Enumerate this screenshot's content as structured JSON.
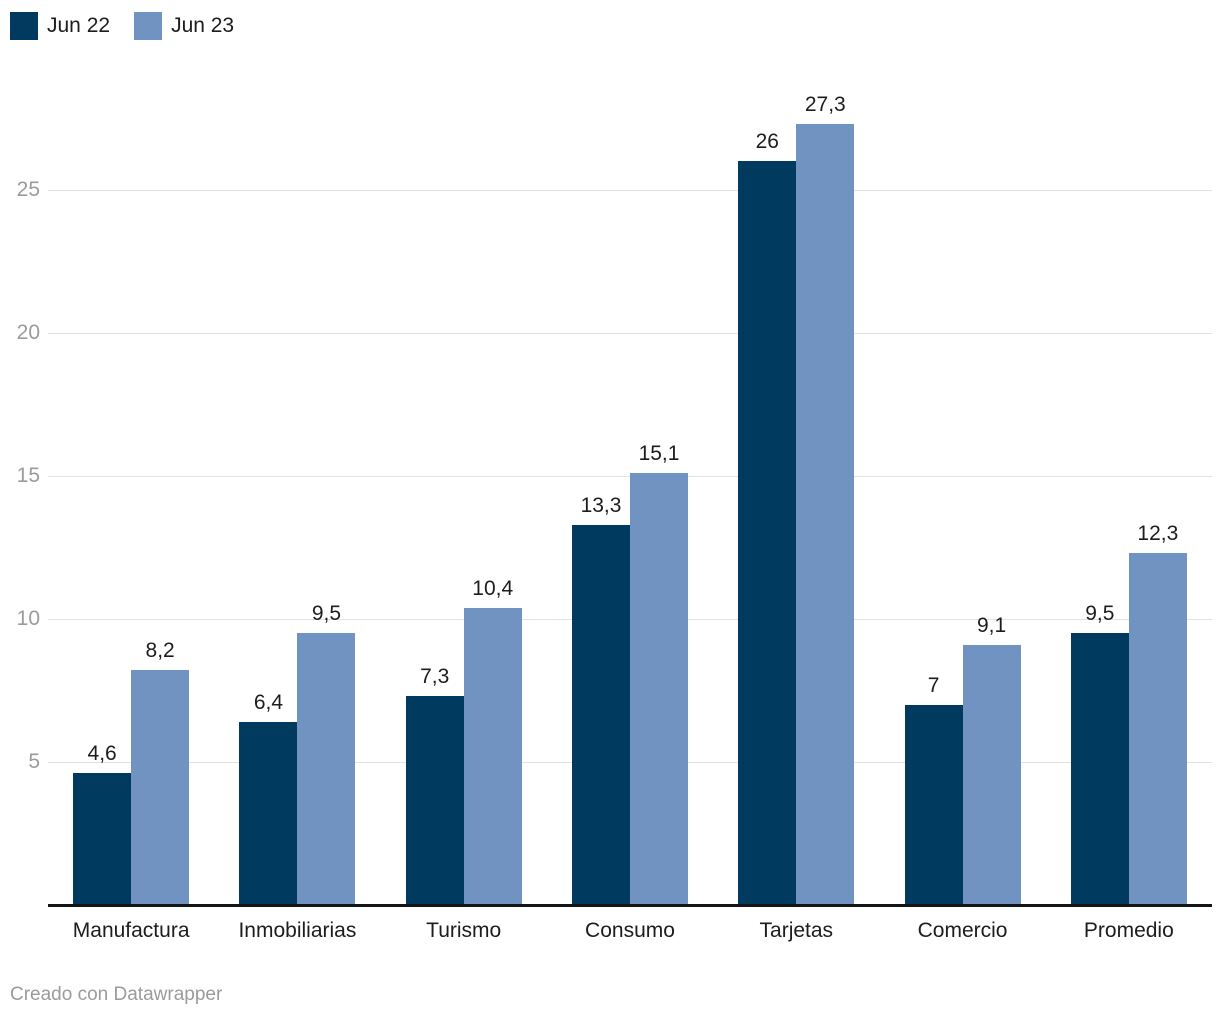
{
  "legend": {
    "items": [
      {
        "label": "Jun 22",
        "color": "#003a5e"
      },
      {
        "label": "Jun 23",
        "color": "#7193c1"
      }
    ]
  },
  "footer": {
    "attribution": "Creado con Datawrapper"
  },
  "colors": {
    "series_dark": "#003a5e",
    "series_light": "#7193c1",
    "text": "#1d1d1d",
    "tick_text": "#9b9b9b",
    "gridline": "#e2e2e2",
    "baseline": "#151515",
    "background": "#ffffff"
  },
  "chart_data": {
    "type": "bar",
    "title": "",
    "xlabel": "",
    "ylabel": "",
    "categories": [
      "Manufactura",
      "Inmobiliarias",
      "Turismo",
      "Consumo",
      "Tarjetas",
      "Comercio",
      "Promedio"
    ],
    "series": [
      {
        "name": "Jun 22",
        "color": "#003a5e",
        "values": [
          4.6,
          6.4,
          7.3,
          13.3,
          26,
          7,
          9.5
        ],
        "labels": [
          "4,6",
          "6,4",
          "7,3",
          "13,3",
          "26",
          "7",
          "9,5"
        ]
      },
      {
        "name": "Jun 23",
        "color": "#7193c1",
        "values": [
          8.2,
          9.5,
          10.4,
          15.1,
          27.3,
          9.1,
          12.3
        ],
        "labels": [
          "8,2",
          "9,5",
          "10,4",
          "15,1",
          "27,3",
          "9,1",
          "12,3"
        ]
      }
    ],
    "yticks": [
      5,
      10,
      15,
      20,
      25
    ],
    "ylim": [
      0,
      28.5
    ],
    "grid": true,
    "legend_position": "top-left",
    "decimal_separator": ","
  }
}
